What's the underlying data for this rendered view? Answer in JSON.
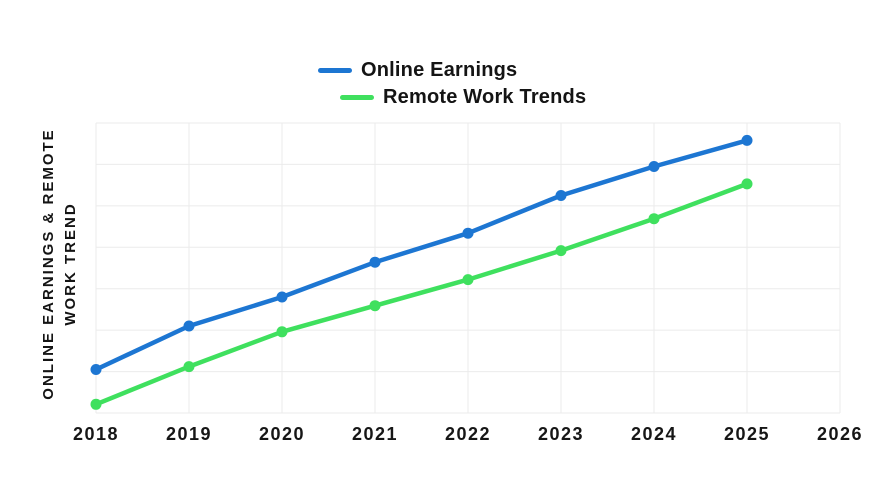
{
  "chart_data": {
    "type": "line",
    "title": "",
    "xlabel": "",
    "ylabel": "ONLINE EARNINGS & REMOTE WORK TREND",
    "ylabel_lines": [
      "ONLINE EARNINGS & REMOTE",
      "WORK TREND"
    ],
    "x": [
      2018,
      2019,
      2020,
      2021,
      2022,
      2023,
      2024,
      2025
    ],
    "x_axis_ticks": [
      "2018",
      "2019",
      "2020",
      "2021",
      "2022",
      "2023",
      "2024",
      "2025",
      "2026"
    ],
    "xlim": [
      2018,
      2026
    ],
    "ylim": [
      0,
      100
    ],
    "y_tick_labels_visible": false,
    "grid": true,
    "legend_position": "top-center",
    "series": [
      {
        "name": "Online Earnings",
        "color": "#1d76d2",
        "values": [
          15,
          30,
          40,
          52,
          62,
          75,
          85,
          94
        ]
      },
      {
        "name": "Remote Work Trends",
        "color": "#3fe05e",
        "values": [
          3,
          16,
          28,
          37,
          46,
          56,
          67,
          79
        ]
      }
    ],
    "colors": {
      "background": "#ffffff",
      "grid_color": "#ebebeb",
      "text_color": "#141414",
      "online_earnings": "#1d76d2",
      "remote_work_trends": "#3fe05e"
    }
  }
}
